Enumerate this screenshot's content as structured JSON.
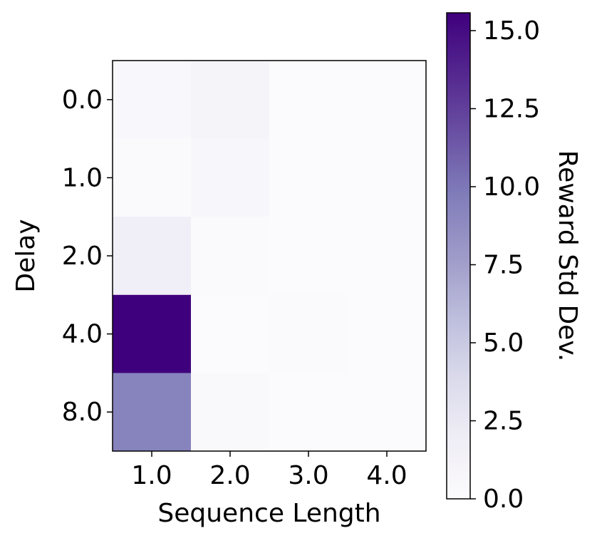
{
  "chart_data": {
    "type": "heatmap",
    "xlabel": "Sequence Length",
    "ylabel": "Delay",
    "colorbar_label": "Reward Std Dev.",
    "x_categories": [
      "1.0",
      "2.0",
      "3.0",
      "4.0"
    ],
    "y_categories": [
      "0.0",
      "1.0",
      "2.0",
      "4.0",
      "8.0"
    ],
    "values": [
      [
        0.6,
        1.0,
        0.2,
        0.1
      ],
      [
        0.3,
        0.7,
        0.2,
        0.1
      ],
      [
        1.8,
        0.3,
        0.2,
        0.1
      ],
      [
        15.57,
        0.2,
        0.3,
        0.1
      ],
      [
        9.3,
        0.4,
        0.2,
        0.1
      ]
    ],
    "colorscale": [
      "#fcfbfd",
      "#efedf5",
      "#dadaeb",
      "#bcbddc",
      "#9e9ac8",
      "#807dba",
      "#6a51a3",
      "#54278f",
      "#3f007d"
    ],
    "clim": [
      0,
      15.57
    ],
    "cticks": [
      {
        "value": 0,
        "label": "0.0"
      },
      {
        "value": 2.5,
        "label": "2.5"
      },
      {
        "value": 5,
        "label": "5.0"
      },
      {
        "value": 7.5,
        "label": "7.5"
      },
      {
        "value": 10,
        "label": "10.0"
      },
      {
        "value": 12.5,
        "label": "12.5"
      },
      {
        "value": 15,
        "label": "15.0"
      }
    ]
  }
}
